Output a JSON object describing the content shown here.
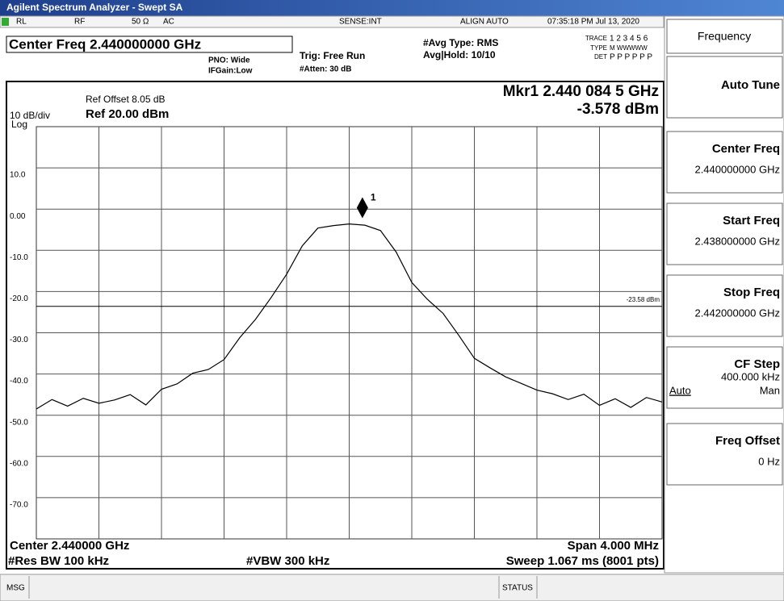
{
  "title_bar": "Agilent Spectrum Analyzer - Swept SA",
  "status_line": {
    "rl": "RL",
    "rf": "RF",
    "impedance": "50 Ω",
    "coupling": "AC",
    "sense": "SENSE:INT",
    "align": "ALIGN AUTO",
    "timestamp": "07:35:18 PM Jul 13, 2020"
  },
  "settings": {
    "center_freq": "Center Freq 2.440000000 GHz",
    "pno": "PNO: Wide",
    "ifgain": "IFGain:Low",
    "trig": "Trig: Free Run",
    "atten": "#Atten: 30 dB",
    "avg_type": "#Avg Type: RMS",
    "avg_hold": "Avg|Hold: 10/10"
  },
  "trace_table": {
    "trace_label": "TRACE",
    "trace": "1 2 3 4 5 6",
    "type_label": "TYPE",
    "type": "M WWWWW",
    "det_label": "DET",
    "det": "P P P P P P"
  },
  "display": {
    "ref_offset": "Ref Offset 8.05 dB",
    "scale": "10 dB/div",
    "scale_type": "Log",
    "ref_level": "Ref 20.00 dBm",
    "marker_readout_freq": "Mkr1 2.440 084 5 GHz",
    "marker_readout_value": "-3.578 dBm",
    "ylim": [
      -80,
      20
    ],
    "yticks": [
      {
        "value": 10,
        "label": "10.0"
      },
      {
        "value": 0,
        "label": "0.00"
      },
      {
        "value": -10,
        "label": "-10.0"
      },
      {
        "value": -20,
        "label": "-20.0"
      },
      {
        "value": -30,
        "label": "-30.0"
      },
      {
        "value": -40,
        "label": "-40.0"
      },
      {
        "value": -50,
        "label": "-50.0"
      },
      {
        "value": -60,
        "label": "-60.0"
      },
      {
        "value": -70,
        "label": "-70.0"
      }
    ],
    "xlim": [
      2.438,
      2.442
    ],
    "display_line": {
      "value": -23.58,
      "label": "-23.58 dBm"
    },
    "trace": {
      "x": [
        2.438,
        2.4381,
        2.4382,
        2.4383,
        2.4384,
        2.4385,
        2.4386,
        2.4387,
        2.4388,
        2.4389,
        2.439,
        2.4391,
        2.4392,
        2.4393,
        2.4394,
        2.4395,
        2.4396,
        2.4397,
        2.4398,
        2.4399,
        2.44,
        2.4401,
        2.4402,
        2.4403,
        2.4404,
        2.4405,
        2.4406,
        2.4407,
        2.4408,
        2.4409,
        2.441,
        2.4411,
        2.4412,
        2.4413,
        2.4414,
        2.4415,
        2.4416,
        2.4417,
        2.4418,
        2.4419,
        2.442
      ],
      "values": [
        -48.5,
        -46.2,
        -47.8,
        -45.9,
        -47.1,
        -46.3,
        -45.0,
        -47.5,
        -43.7,
        -42.4,
        -39.8,
        -38.9,
        -36.5,
        -31.2,
        -26.8,
        -21.5,
        -15.8,
        -8.9,
        -4.6,
        -4.0,
        -3.6,
        -3.9,
        -5.2,
        -10.4,
        -17.8,
        -21.9,
        -25.3,
        -30.6,
        -36.2,
        -38.5,
        -40.7,
        -42.3,
        -43.9,
        -44.8,
        -46.2,
        -44.9,
        -47.6,
        -46.0,
        -48.1,
        -45.7,
        -46.8
      ]
    },
    "marker": {
      "label": "1",
      "x": 2.4400845,
      "value": -3.578
    },
    "center": "Center 2.440000 GHz",
    "span": "Span 4.000 MHz",
    "rbw": "#Res BW 100 kHz",
    "vbw": "#VBW 300 kHz",
    "sweep": "Sweep  1.067 ms (8001 pts)"
  },
  "softkeys": {
    "menu": "Frequency",
    "keys": [
      {
        "label": "Auto Tune"
      },
      {
        "label": "Center Freq",
        "value": "2.440000000 GHz"
      },
      {
        "label": "Start Freq",
        "value": "2.438000000 GHz"
      },
      {
        "label": "Stop Freq",
        "value": "2.442000000 GHz"
      },
      {
        "label": "CF Step",
        "value": "400.000 kHz",
        "options": [
          "Auto",
          "Man"
        ]
      },
      {
        "label": "Freq Offset",
        "value": "0 Hz"
      }
    ]
  },
  "bottom_bar": {
    "msg": "MSG",
    "status": "STATUS"
  }
}
